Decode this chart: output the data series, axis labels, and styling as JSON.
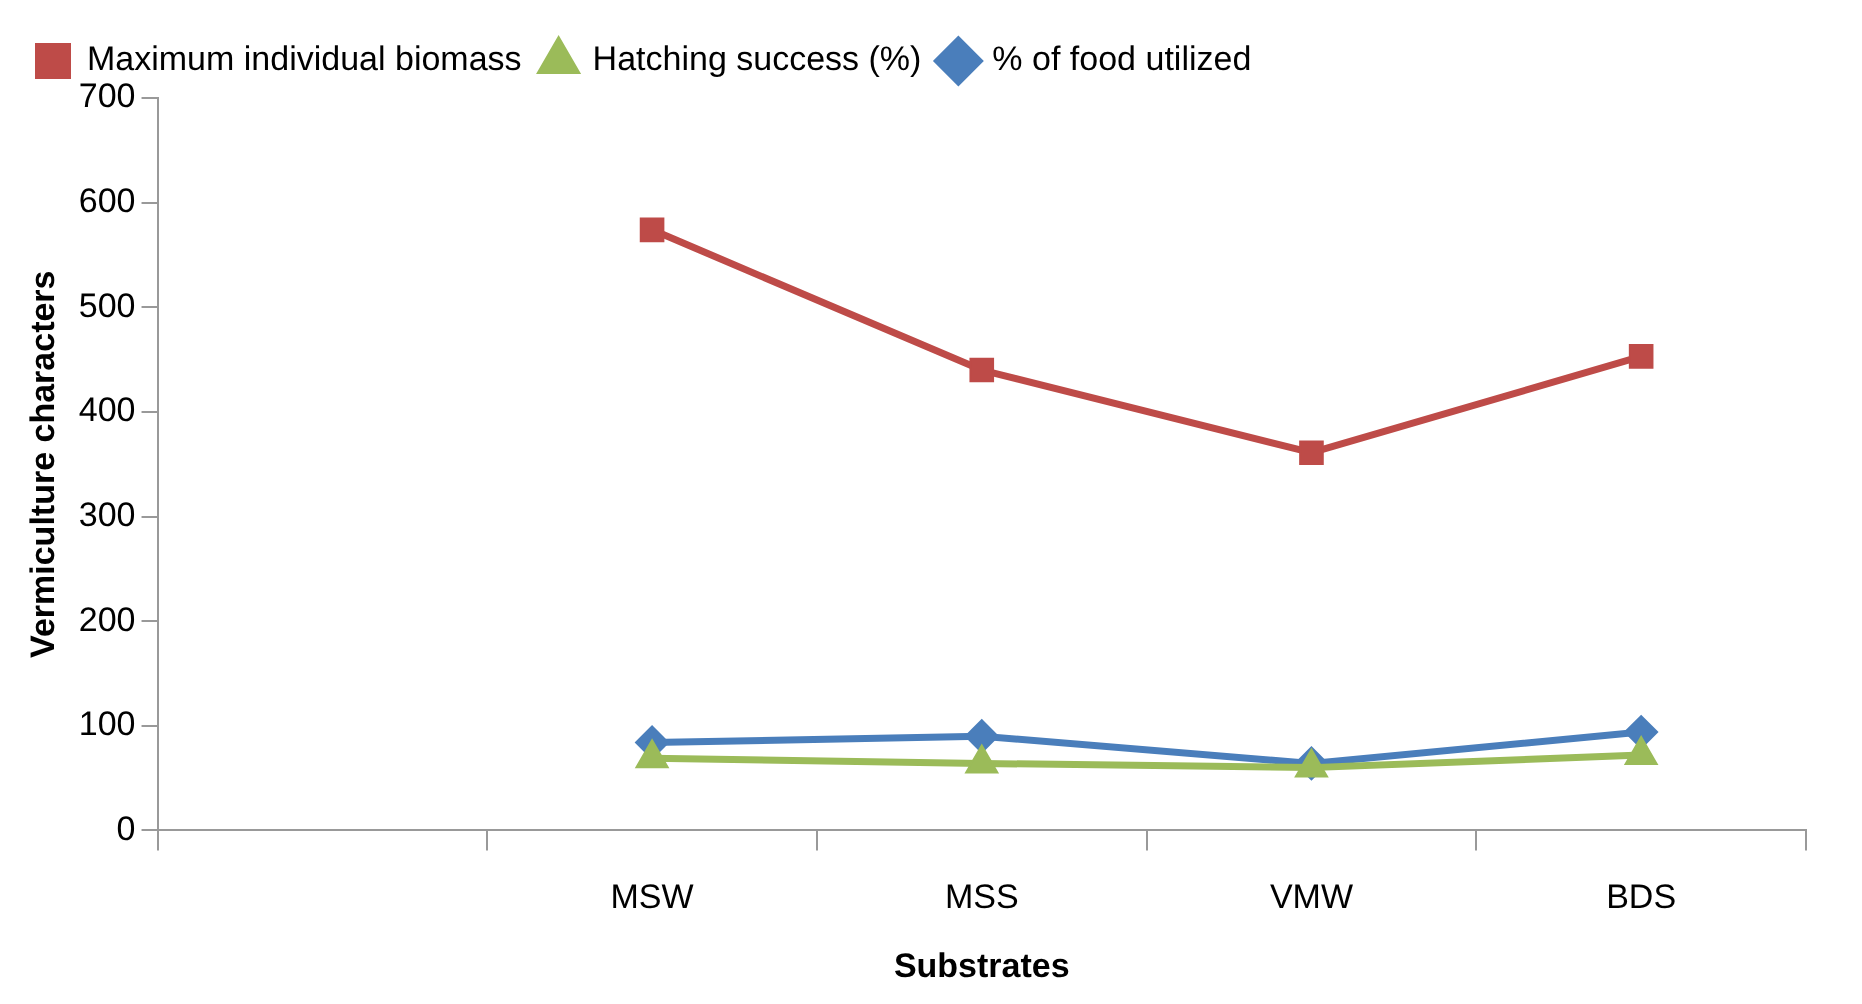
{
  "chart_data": {
    "type": "line",
    "xlabel": "Substrates",
    "ylabel": "Vermiculture characters",
    "categories": [
      null,
      "MSW",
      "MSS",
      "VMW",
      "BDS"
    ],
    "series": [
      {
        "name": "% of food utilized",
        "color": "#4a7ebb",
        "marker": "diamond",
        "values": [
          null,
          84,
          90,
          64,
          94
        ]
      },
      {
        "name": "Hatching success (%)",
        "color": "#9bbb59",
        "marker": "triangle",
        "values": [
          null,
          69,
          64,
          60,
          72
        ]
      },
      {
        "name": "Maximum individual biomass",
        "color": "#be4b48",
        "marker": "square",
        "values": [
          null,
          574,
          440,
          361,
          453
        ]
      }
    ],
    "ylim": [
      0,
      700
    ],
    "yticks": [
      0,
      100,
      200,
      300,
      400,
      500,
      600,
      700
    ],
    "grid": false,
    "legend": "top"
  }
}
